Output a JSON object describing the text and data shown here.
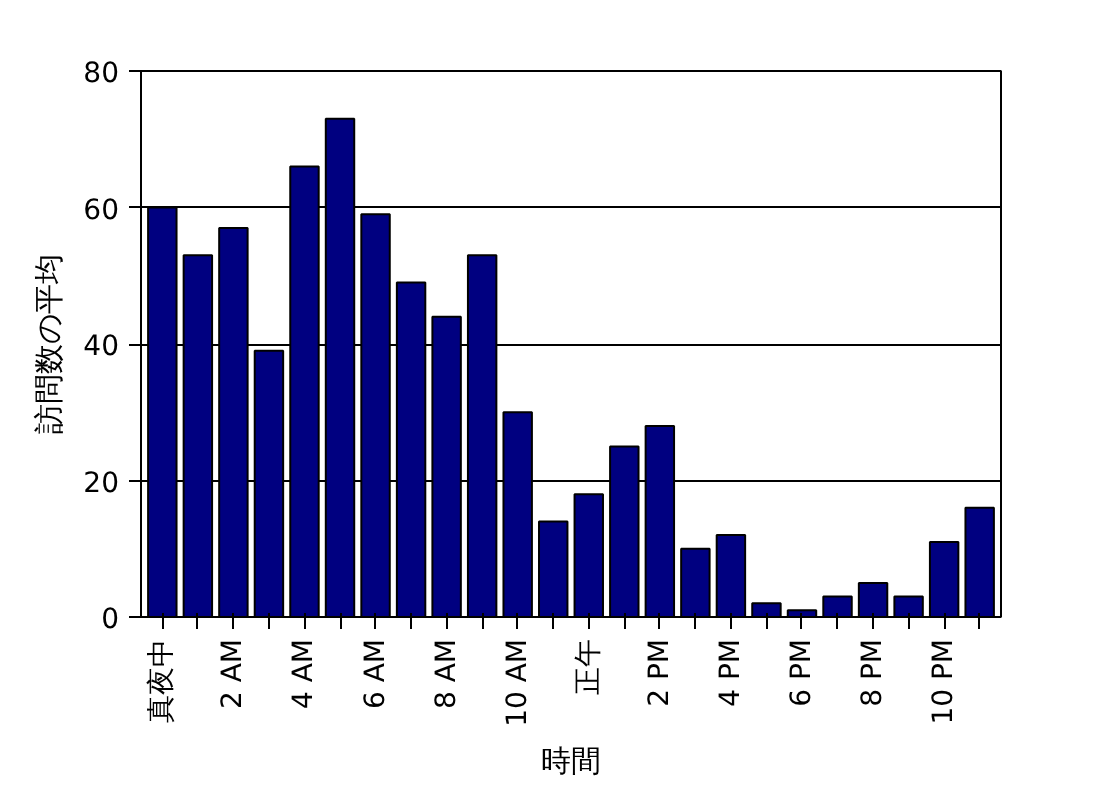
{
  "chart_data": {
    "type": "bar",
    "xlabel": "時間",
    "ylabel": "訪問数の平均",
    "categories": [
      "真夜中",
      null,
      "2 AM",
      null,
      "4 AM",
      null,
      "6 AM",
      null,
      "8 AM",
      null,
      "10 AM",
      null,
      "正午",
      null,
      "2 PM",
      null,
      "4 PM",
      null,
      "6 PM",
      null,
      "8 PM",
      null,
      "10 PM",
      null
    ],
    "values": [
      60,
      53,
      57,
      39,
      66,
      73,
      59,
      49,
      44,
      53,
      30,
      14,
      18,
      25,
      28,
      10,
      12,
      2,
      1,
      3,
      5,
      3,
      11,
      16
    ],
    "color": "#000080",
    "ylim": [
      0,
      80
    ],
    "yticks": [
      0,
      20,
      40,
      60,
      80
    ],
    "grid": "y"
  }
}
